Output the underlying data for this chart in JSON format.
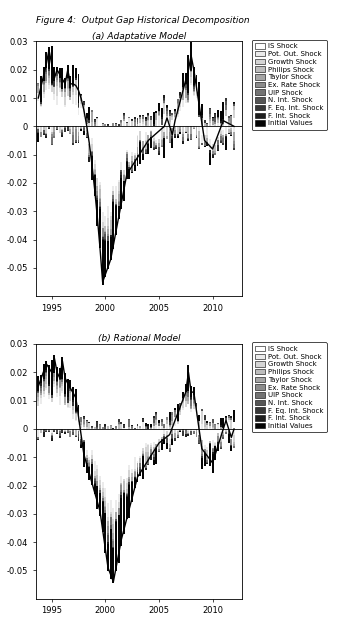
{
  "title": "Figure 4:  Output Gap Historical Decomposition",
  "subtitle_a": "(a) Adaptative Model",
  "subtitle_b": "(b) Rational Model",
  "legend_labels": [
    "IS Shock",
    "Pot. Out. Shock",
    "Growth Shock",
    "Philips Shock",
    "Taylor Shock",
    "Ex. Rate Shock",
    "UIP Shock",
    "N. Int. Shock",
    "F. Eq. Int. Shock",
    "F. Int. Shock",
    "Initial Values"
  ],
  "legend_colors": [
    "#ffffff",
    "#ebebeb",
    "#d4d4d4",
    "#bdbdbd",
    "#a6a6a6",
    "#8c8c8c",
    "#737373",
    "#555555",
    "#383838",
    "#1e1e1e",
    "#050505"
  ],
  "ylim": [
    -0.06,
    0.03
  ],
  "yticks": [
    -0.05,
    -0.04,
    -0.03,
    -0.02,
    -0.01,
    0.0,
    0.01,
    0.02,
    0.03
  ],
  "ytick_labels": [
    "-0.05",
    "-0.04",
    "-0.03",
    "-0.02",
    "-0.01",
    "0",
    "0.01",
    "0.02",
    "0.03"
  ],
  "xticks": [
    1995,
    2000,
    2005,
    2010
  ],
  "n_components": 11,
  "bar_width": 0.18
}
